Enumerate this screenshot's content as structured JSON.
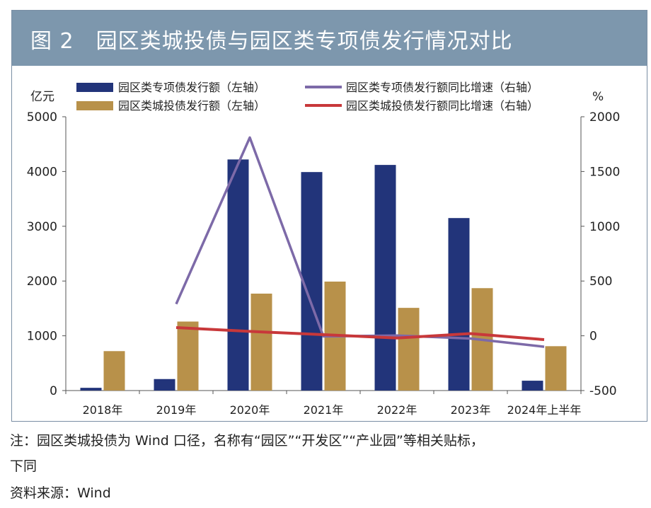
{
  "figure": {
    "title": "图 2　园区类城投债与园区类专项债发行情况对比",
    "note_line1": "注：园区类城投债为 Wind 口径，名称有“园区”“开发区”“产业园”等相关贴标，",
    "note_line2": "下同",
    "source": "资料来源：Wind"
  },
  "colors": {
    "title_bg": "#7d97ad",
    "navy_bar": "#22347a",
    "gold_bar": "#b8914a",
    "purple_line": "#7d6aa8",
    "red_line": "#c8383a"
  },
  "chart_data": {
    "type": "bar+line",
    "categories": [
      "2018年",
      "2019年",
      "2020年",
      "2021年",
      "2022年",
      "2023年",
      "2024年上半年"
    ],
    "left_axis": {
      "unit_label": "亿元",
      "ylim": [
        0,
        5000
      ],
      "ticks": [
        "0",
        "1000",
        "2000",
        "3000",
        "4000",
        "5000"
      ]
    },
    "right_axis": {
      "unit_label": "%",
      "ylim": [
        -500,
        2000
      ],
      "ticks": [
        "-500",
        "0",
        "500",
        "1000",
        "1500",
        "2000"
      ]
    },
    "series": [
      {
        "name": "园区类专项债发行额（左轴）",
        "type": "bar",
        "axis": "left",
        "color": "#22347a",
        "values": [
          50,
          210,
          4220,
          3990,
          4120,
          3150,
          180
        ]
      },
      {
        "name": "园区类城投债发行额（左轴）",
        "type": "bar",
        "axis": "left",
        "color": "#b8914a",
        "values": [
          720,
          1260,
          1770,
          1990,
          1510,
          1870,
          810
        ]
      },
      {
        "name": "园区类专项债发行额同比增速（右轴）",
        "type": "line",
        "axis": "right",
        "color": "#7d6aa8",
        "values": [
          null,
          290,
          1810,
          -5,
          2,
          -25,
          -100
        ]
      },
      {
        "name": "园区类城投债发行额同比增速（右轴）",
        "type": "line",
        "axis": "right",
        "color": "#c8383a",
        "values": [
          null,
          75,
          40,
          10,
          -20,
          20,
          -35
        ]
      }
    ],
    "legend_position": "top"
  }
}
